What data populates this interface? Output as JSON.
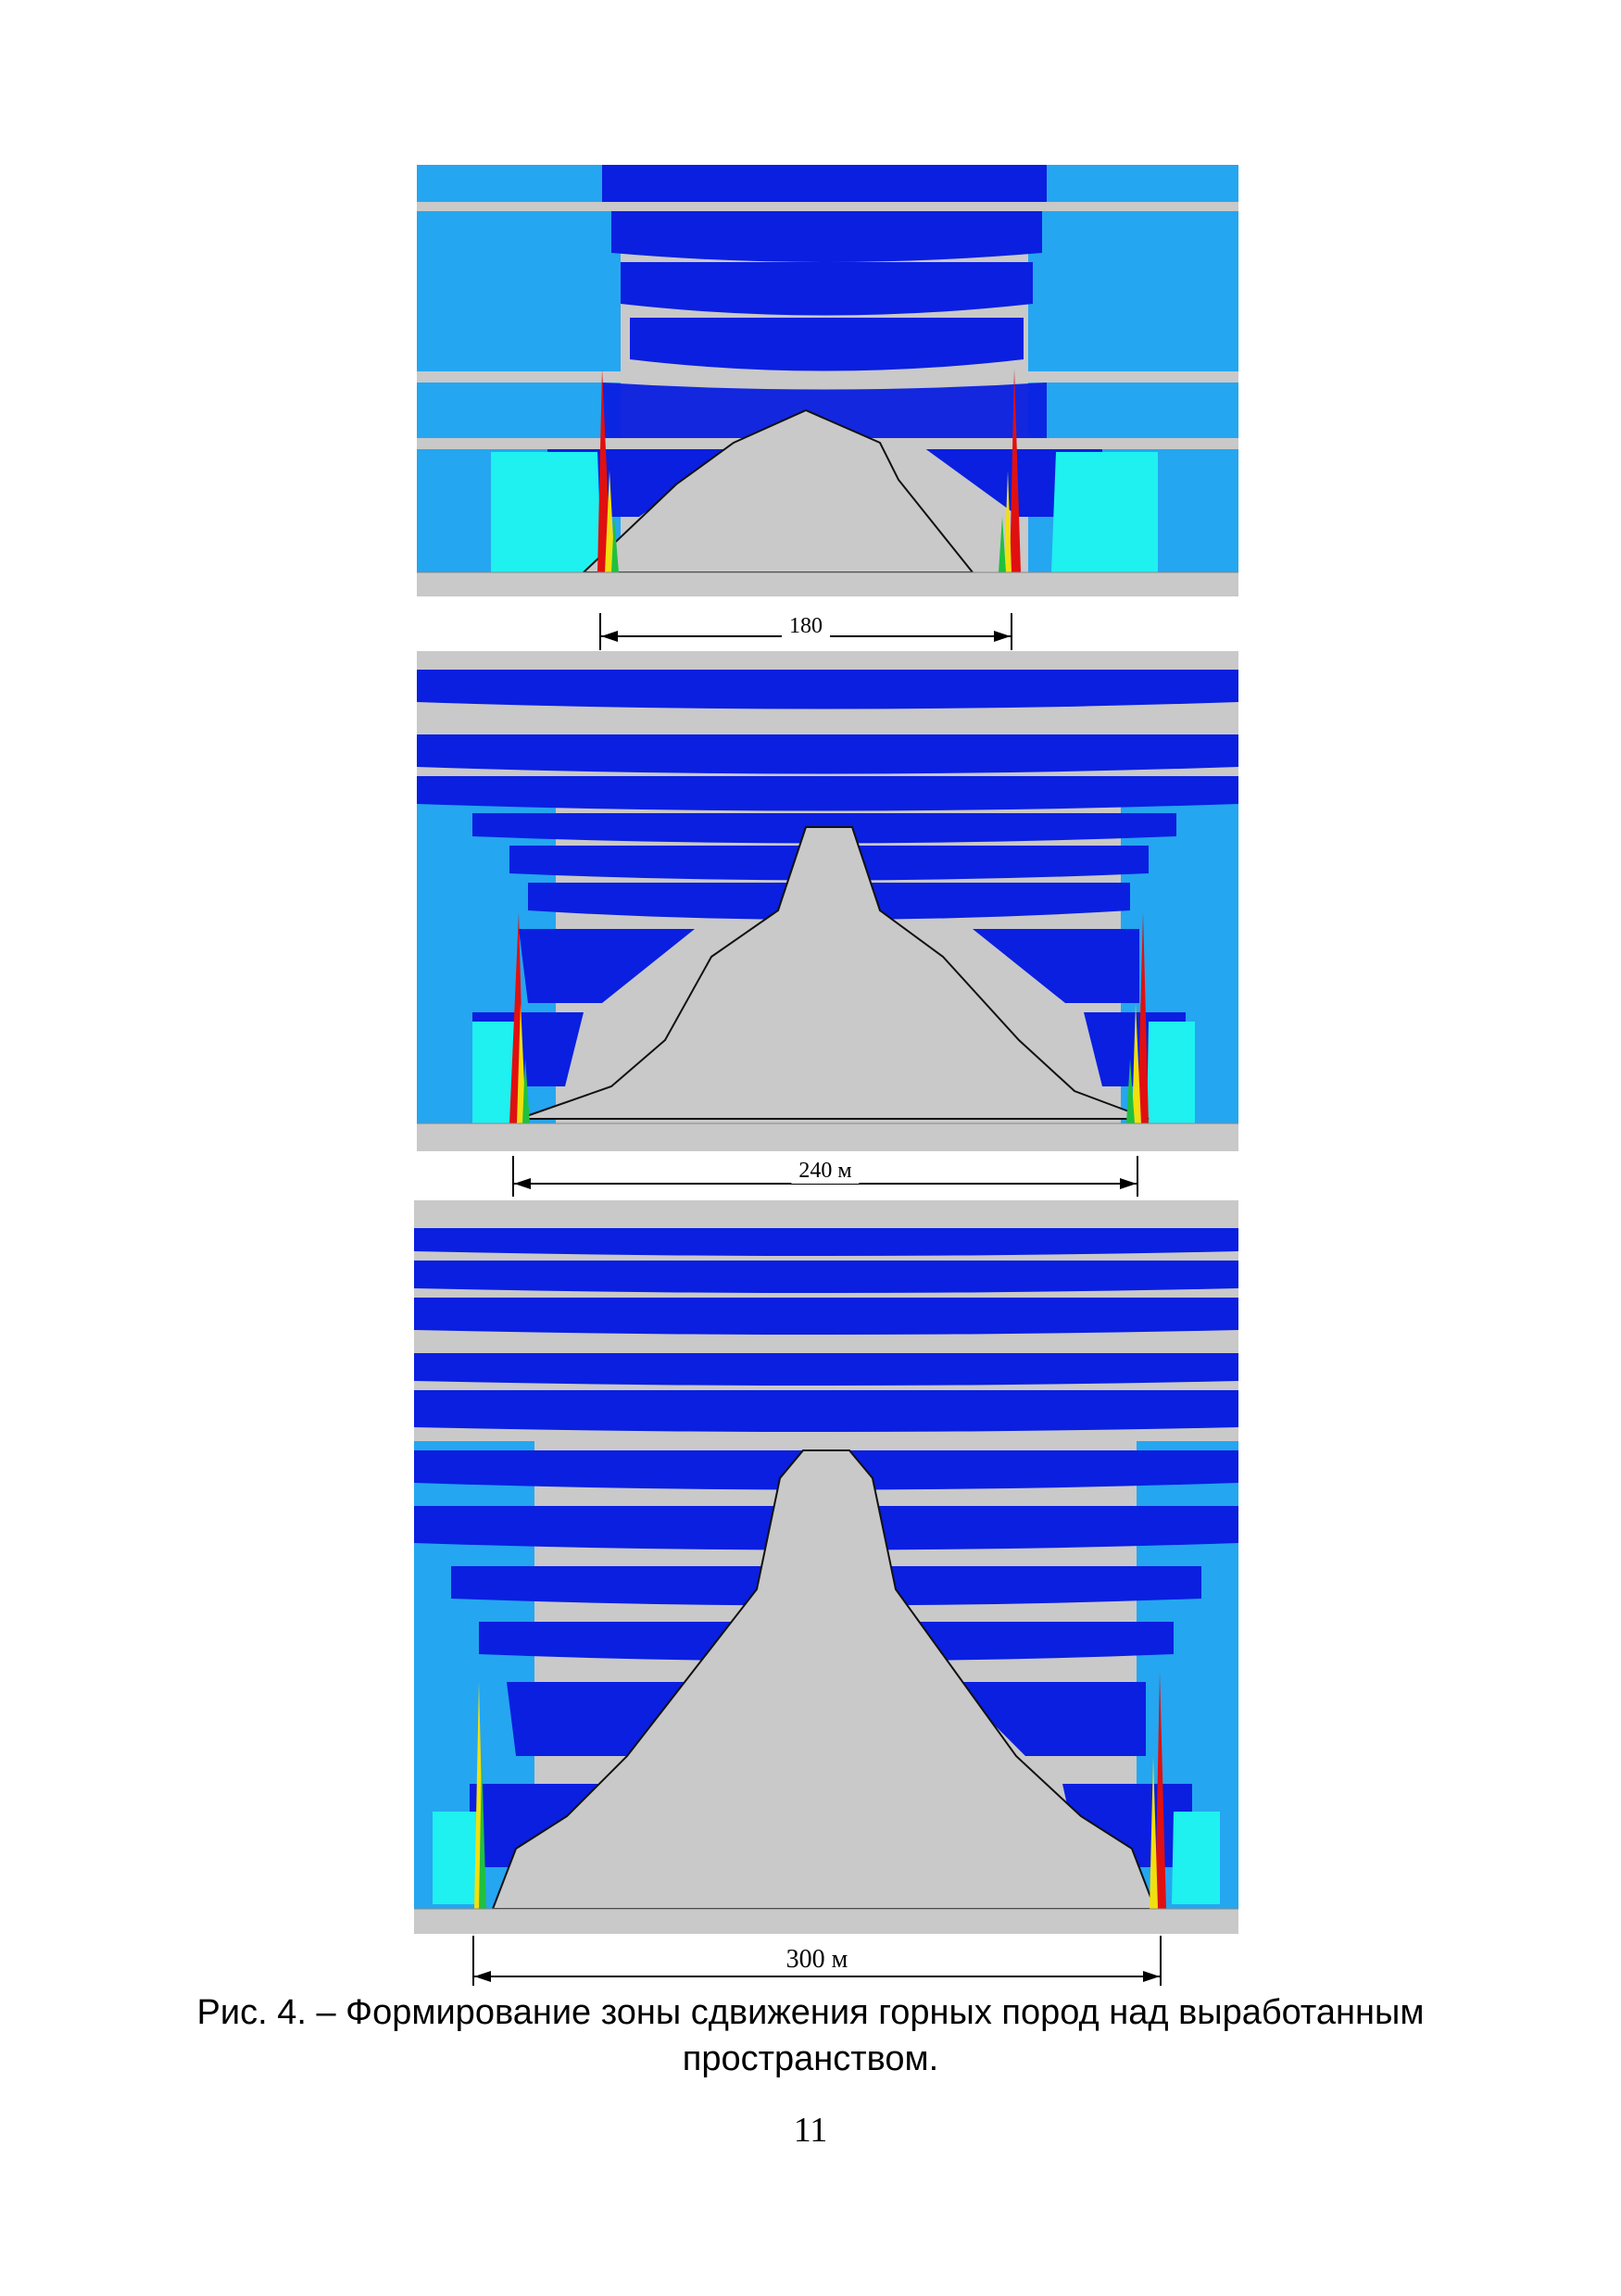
{
  "figure": {
    "panels": [
      {
        "span_label": "180"
      },
      {
        "span_label": "240 м"
      },
      {
        "span_label": "300 м"
      }
    ],
    "caption_line1": "Рис. 4. – Формирование зоны сдвижения горных пород над выработанным",
    "caption_line2": "пространством."
  },
  "page_number": "11",
  "colors": {
    "rock_blue": "#0a1fe0",
    "rock_mid_blue": "#0f88e8",
    "rock_light_blue": "#25a6f0",
    "rock_cyan": "#1ff0f0",
    "void_gray": "#c9c9c9",
    "stress_red": "#e01010",
    "stress_yellow": "#f0e010",
    "stress_green": "#20c040"
  }
}
